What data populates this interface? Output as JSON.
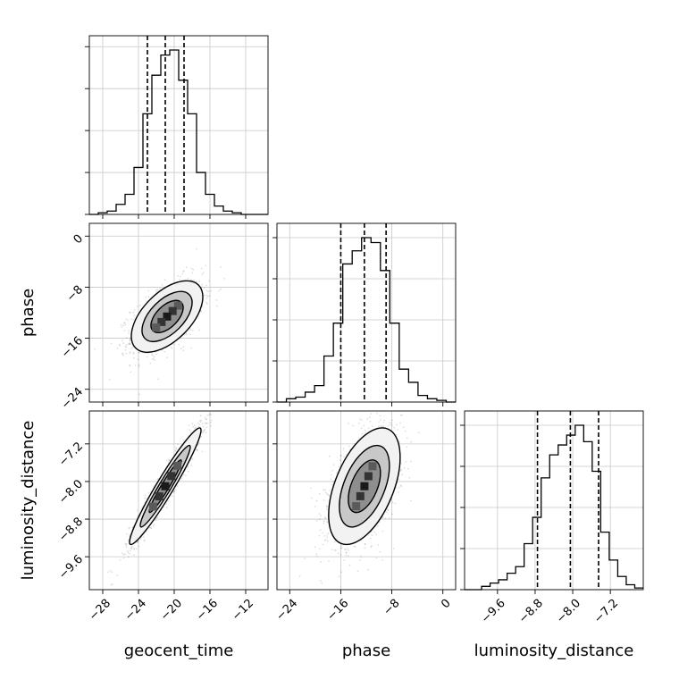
{
  "chart_data": {
    "type": "corner",
    "title": "",
    "parameters": [
      {
        "name": "geocent_time",
        "label": "geocent_time",
        "range": [
          -29.5,
          -9.5
        ],
        "ticks": [
          -28,
          -24,
          -20,
          -16,
          -12
        ],
        "tick_labels": [
          "−28",
          "−24",
          "−20",
          "−16",
          "−12"
        ],
        "quantiles": [
          -23.0,
          -21.0,
          -18.9
        ],
        "histogram": [
          0,
          1,
          2,
          6,
          12,
          28,
          60,
          83,
          95,
          98,
          80,
          60,
          25,
          12,
          5,
          2,
          1,
          0,
          0,
          0
        ]
      },
      {
        "name": "phase",
        "label": "phase",
        "range": [
          -26.0,
          2.0
        ],
        "ticks": [
          -24,
          -16,
          -8,
          0
        ],
        "tick_labels": [
          "−24",
          "−16",
          "−8",
          "0"
        ],
        "quantiles": [
          -16.0,
          -12.3,
          -8.9
        ],
        "histogram": [
          0,
          2,
          3,
          6,
          10,
          28,
          48,
          84,
          92,
          100,
          97,
          80,
          48,
          20,
          12,
          4,
          2,
          1,
          0
        ]
      },
      {
        "name": "luminosity_distance",
        "label": "luminosity_distance",
        "range": [
          -10.3,
          -6.5
        ],
        "ticks": [
          -9.6,
          -8.8,
          -8.0,
          -7.2
        ],
        "tick_labels": [
          "−9.6",
          "−8.8",
          "−8.0",
          "−7.2"
        ],
        "quantiles": [
          -8.75,
          -8.05,
          -7.45
        ],
        "histogram": [
          0,
          0,
          2,
          4,
          6,
          10,
          14,
          28,
          44,
          68,
          82,
          88,
          94,
          100,
          90,
          72,
          35,
          18,
          8,
          3,
          1
        ]
      }
    ],
    "hist_y_ticks": [
      0,
      25,
      50,
      75,
      100
    ],
    "pairs": [
      {
        "x": "geocent_time",
        "y": "phase",
        "mean": [
          -20.8,
          -12.6
        ],
        "sd": [
          2.0,
          2.8
        ],
        "corr": 0.55,
        "contour_scales": [
          0.9,
          1.4,
          2.0
        ]
      },
      {
        "x": "geocent_time",
        "y": "luminosity_distance",
        "mean": [
          -21.0,
          -8.1
        ],
        "sd": [
          2.0,
          0.62
        ],
        "corr": 0.96,
        "contour_scales": [
          0.9,
          1.4,
          2.0
        ]
      },
      {
        "x": "phase",
        "y": "luminosity_distance",
        "mean": [
          -12.3,
          -8.1
        ],
        "sd": [
          2.8,
          0.62
        ],
        "corr": 0.5,
        "contour_scales": [
          0.9,
          1.4,
          2.0
        ]
      }
    ],
    "grid": true,
    "quantile_line_style": "dashed",
    "n_scatter_points": 1300
  }
}
